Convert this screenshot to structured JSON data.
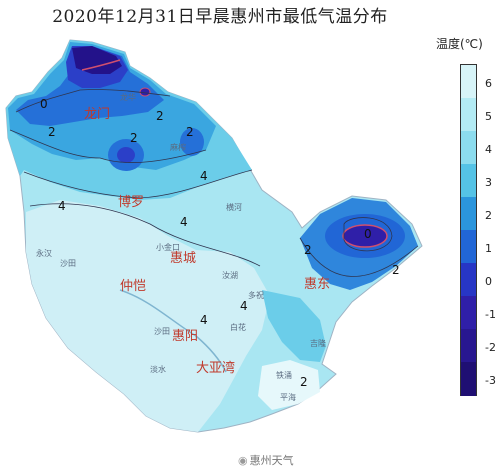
{
  "title": "2020年12月31日早晨惠州市最低气温分布",
  "legend": {
    "title": "温度(℃)",
    "ticks": [
      "6",
      "5",
      "4",
      "3",
      "2",
      "1",
      "0",
      "-1",
      "-2",
      "-3"
    ],
    "colors": [
      "#d7f4f8",
      "#b3ebf4",
      "#8cdcee",
      "#55c3e6",
      "#2b95dc",
      "#2166d6",
      "#2736c5",
      "#2f1fa8",
      "#281790",
      "#1f0f73"
    ]
  },
  "cities": [
    "龙门",
    "博罗",
    "惠城",
    "仲恺",
    "惠阳",
    "惠东",
    "大亚湾"
  ],
  "contour_labels": [
    "0",
    "2",
    "2",
    "2",
    "2",
    "4",
    "4",
    "4",
    "4",
    "4",
    "2",
    "0",
    "2",
    "2"
  ],
  "watermark": "惠州天气"
}
